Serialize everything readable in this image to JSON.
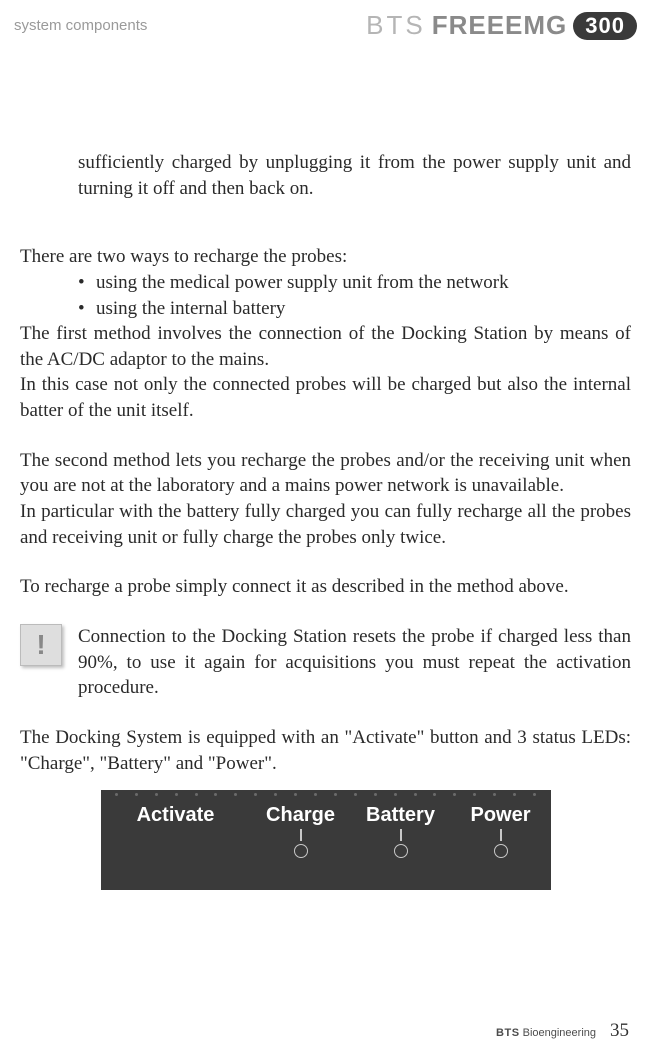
{
  "header": {
    "section": "system components",
    "logo": {
      "bts": "BTS",
      "freeemg": "FREEEMG",
      "badge": "300"
    }
  },
  "body": {
    "frag1": "sufficiently charged by unplugging it from the power supply unit and turning it off and then back on.",
    "intro_probes": "There are two ways to recharge the probes:",
    "bullets": [
      "using the medical power supply unit from the network",
      "using the internal battery"
    ],
    "m1a": "The first method involves the connection of the Docking Station by means of the AC/DC adaptor to the mains.",
    "m1b": "In this case not only the connected probes will be charged but also the internal batter of the unit itself.",
    "m2a": "The second method lets you recharge the probes and/or the receiving unit when you are not at the laboratory and a mains power network is unavailable.",
    "m2b": "In particular with the battery fully charged you can fully recharge all the probes and receiving unit or fully charge the probes only twice.",
    "m3": "To recharge a probe simply connect it as described in the method above.",
    "note": "Connection to the Docking Station resets the probe if charged less than 90%, to use it again for acquisitions you must repeat the activation procedure.",
    "dock": "The Docking System is equipped with an \"Activate\" button and 3 status LEDs: \"Charge\", \"Battery\" and \"Power\"."
  },
  "panel": {
    "activate": "Activate",
    "charge": "Charge",
    "battery": "Battery",
    "power": "Power",
    "colors": {
      "bg": "#3a3a3a",
      "text": "#ffffff",
      "led_border": "#c8c8c8",
      "dot": "#6a6a6a"
    }
  },
  "footer": {
    "brand_bold": "BTS",
    "brand_rest": " Bioengineering",
    "page": "35"
  }
}
